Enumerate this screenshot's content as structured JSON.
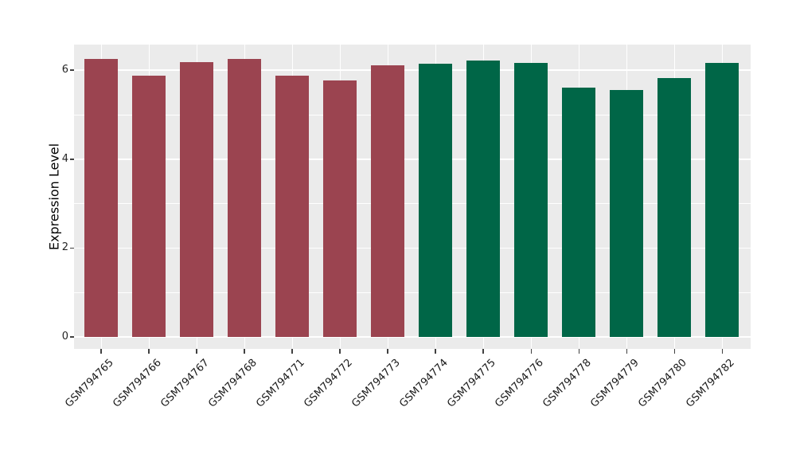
{
  "figure": {
    "background": "#ffffff",
    "panel_background": "#EBEBEB",
    "gridline_color": "#ffffff",
    "tick_color": "#404040",
    "axis_text_color": "#262626"
  },
  "chart_data": {
    "type": "bar",
    "title": "",
    "xlabel": "",
    "ylabel": "Expression Level",
    "ylim": [
      0,
      6.56
    ],
    "yticks": [
      0,
      2,
      4,
      6
    ],
    "ytick_labels": [
      "0",
      "2",
      "4",
      "6"
    ],
    "minor_gridlines": [
      1,
      3,
      5
    ],
    "grid": "on",
    "legend_position": "none",
    "x_label_rotation_deg": 45,
    "categories": [
      "GSM794765",
      "GSM794766",
      "GSM794767",
      "GSM794768",
      "GSM794771",
      "GSM794772",
      "GSM794773",
      "GSM794774",
      "GSM794775",
      "GSM794776",
      "GSM794778",
      "GSM794779",
      "GSM794780",
      "GSM794782"
    ],
    "values": [
      6.26,
      5.87,
      6.18,
      6.25,
      5.87,
      5.77,
      6.11,
      6.14,
      6.22,
      6.16,
      5.61,
      5.55,
      5.83,
      6.16
    ],
    "bar_colors": [
      "#9B4450",
      "#9B4450",
      "#9B4450",
      "#9B4450",
      "#9B4450",
      "#9B4450",
      "#9B4450",
      "#006647",
      "#006647",
      "#006647",
      "#006647",
      "#006647",
      "#006647",
      "#006647"
    ],
    "group_colors": {
      "left_group": "#9B4450",
      "right_group": "#006647"
    }
  }
}
